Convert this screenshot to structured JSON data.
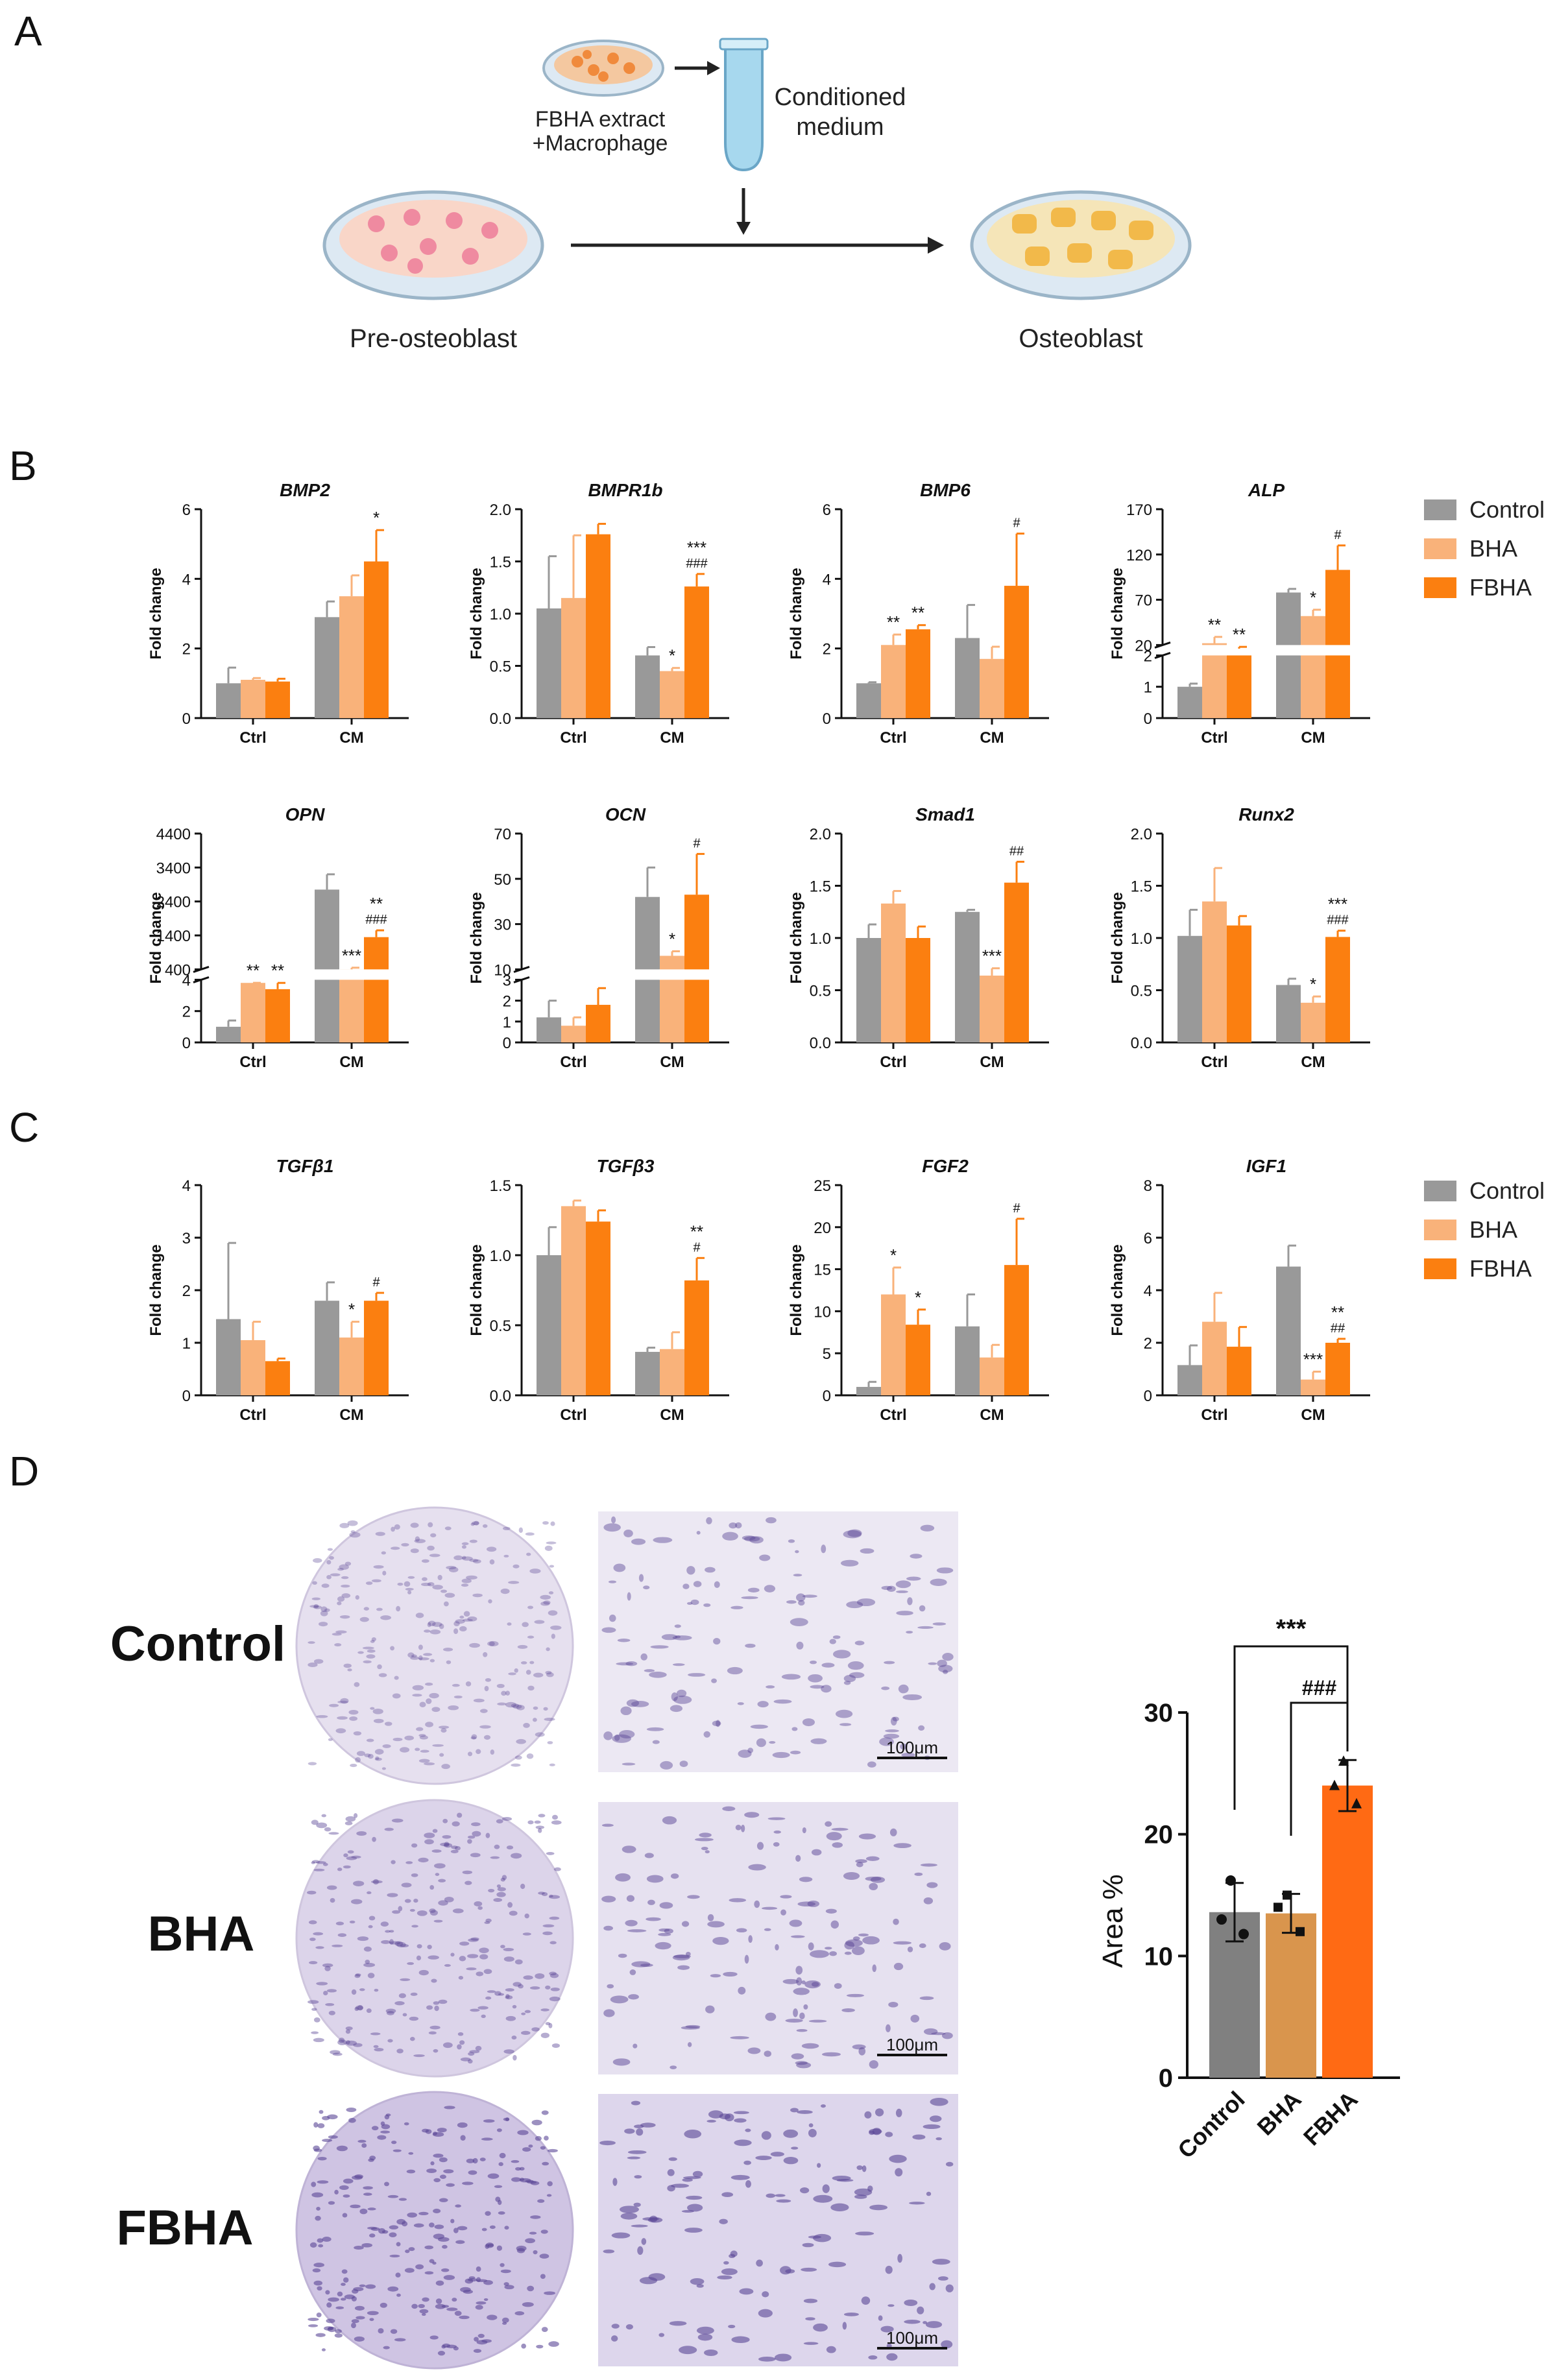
{
  "panel_labels": {
    "A": "A",
    "B": "B",
    "C": "C",
    "D": "D"
  },
  "schematic": {
    "dish_top_label_1": "FBHA extract",
    "dish_top_label_2": "+Macrophage",
    "tube_label_1": "Conditioned",
    "tube_label_2": "medium",
    "left_dish_label": "Pre-osteoblast",
    "right_dish_label": "Osteoblast"
  },
  "legend": {
    "items": [
      {
        "name": "Control",
        "color": "#999999"
      },
      {
        "name": "BHA",
        "color": "#f9b27a"
      },
      {
        "name": "FBHA",
        "color": "#fb7f10"
      }
    ]
  },
  "colors": {
    "control": "#999999",
    "bha": "#f9b27a",
    "fbha": "#fb7f10",
    "d_control": "#808080",
    "d_bha": "#d9954d",
    "d_fbha": "#ff6a14"
  },
  "staining": {
    "row_labels": [
      "Control",
      "BHA",
      "FBHA"
    ],
    "scale_bar_label": "100μm"
  },
  "chart_data": [
    {
      "panel": "B",
      "type": "bar",
      "title": "BMP2",
      "ylabel": "Fold change",
      "categories": [
        "Ctrl",
        "CM"
      ],
      "ylim": [
        0,
        6
      ],
      "yticks": [
        0,
        2,
        4,
        6
      ],
      "series": [
        {
          "name": "Control",
          "values": [
            1.0,
            2.9
          ],
          "errors": [
            0.45,
            0.45
          ]
        },
        {
          "name": "BHA",
          "values": [
            1.1,
            3.5
          ],
          "errors": [
            0.05,
            0.6
          ]
        },
        {
          "name": "FBHA",
          "values": [
            1.05,
            4.5
          ],
          "errors": [
            0.08,
            0.9
          ]
        }
      ],
      "annotations": [
        [
          "",
          "",
          ""
        ],
        [
          "",
          "",
          "*"
        ]
      ]
    },
    {
      "panel": "B",
      "type": "bar",
      "title": "BMPR1b",
      "ylabel": "Fold change",
      "categories": [
        "Ctrl",
        "CM"
      ],
      "ylim": [
        0,
        2.0
      ],
      "yticks": [
        0.0,
        0.5,
        1.0,
        1.5,
        2.0
      ],
      "series": [
        {
          "name": "Control",
          "values": [
            1.05,
            0.6
          ],
          "errors": [
            0.5,
            0.08
          ]
        },
        {
          "name": "BHA",
          "values": [
            1.15,
            0.45
          ],
          "errors": [
            0.6,
            0.03
          ]
        },
        {
          "name": "FBHA",
          "values": [
            1.76,
            1.26
          ],
          "errors": [
            0.1,
            0.12
          ]
        }
      ],
      "annotations": [
        [
          "",
          "",
          ""
        ],
        [
          "",
          "*",
          "***\n###"
        ]
      ]
    },
    {
      "panel": "B",
      "type": "bar",
      "title": "BMP6",
      "ylabel": "Fold change",
      "categories": [
        "Ctrl",
        "CM"
      ],
      "ylim": [
        0,
        6
      ],
      "yticks": [
        0,
        2,
        4,
        6
      ],
      "series": [
        {
          "name": "Control",
          "values": [
            1.0,
            2.3
          ],
          "errors": [
            0.03,
            0.95
          ]
        },
        {
          "name": "BHA",
          "values": [
            2.1,
            1.7
          ],
          "errors": [
            0.3,
            0.35
          ]
        },
        {
          "name": "FBHA",
          "values": [
            2.55,
            3.8
          ],
          "errors": [
            0.12,
            1.5
          ]
        }
      ],
      "annotations": [
        [
          "",
          "**",
          "**"
        ],
        [
          "",
          "",
          "#"
        ]
      ]
    },
    {
      "panel": "B",
      "type": "bar",
      "title": "ALP",
      "ylabel": "Fold change",
      "categories": [
        "Ctrl",
        "CM"
      ],
      "axis_break": true,
      "yticks_lower": [
        0,
        1,
        2
      ],
      "yticks_upper": [
        20,
        70,
        120,
        170
      ],
      "series": [
        {
          "name": "Control",
          "values": [
            1.0,
            78
          ],
          "errors": [
            0.1,
            4
          ]
        },
        {
          "name": "BHA",
          "values": [
            22,
            52
          ],
          "errors": [
            7,
            7
          ]
        },
        {
          "name": "FBHA",
          "values": [
            16,
            103
          ],
          "errors": [
            2,
            27
          ]
        }
      ],
      "annotations": [
        [
          "",
          "**",
          "**"
        ],
        [
          "",
          "*",
          "#"
        ]
      ]
    },
    {
      "panel": "B",
      "type": "bar",
      "title": "OPN",
      "ylabel": "Fold change",
      "categories": [
        "Ctrl",
        "CM"
      ],
      "axis_break": true,
      "yticks_lower": [
        0,
        2,
        4
      ],
      "yticks_upper": [
        400,
        1400,
        2400,
        3400,
        4400
      ],
      "series": [
        {
          "name": "Control",
          "values": [
            1.0,
            2750
          ],
          "errors": [
            0.4,
            450
          ]
        },
        {
          "name": "BHA",
          "values": [
            3.8,
            400
          ],
          "errors": [
            0.3,
            50
          ]
        },
        {
          "name": "FBHA",
          "values": [
            3.4,
            1350
          ],
          "errors": [
            0.4,
            200
          ]
        }
      ],
      "annotations": [
        [
          "",
          "**",
          "**"
        ],
        [
          "",
          "***",
          "**\n###"
        ]
      ]
    },
    {
      "panel": "B",
      "type": "bar",
      "title": "OCN",
      "ylabel": "Fold change",
      "categories": [
        "Ctrl",
        "CM"
      ],
      "axis_break": true,
      "yticks_lower": [
        0,
        1,
        2,
        3
      ],
      "yticks_upper": [
        10,
        30,
        50,
        70
      ],
      "series": [
        {
          "name": "Control",
          "values": [
            1.2,
            42
          ],
          "errors": [
            0.8,
            13
          ]
        },
        {
          "name": "BHA",
          "values": [
            0.8,
            16
          ],
          "errors": [
            0.4,
            2
          ]
        },
        {
          "name": "FBHA",
          "values": [
            1.8,
            43
          ],
          "errors": [
            0.8,
            18
          ]
        }
      ],
      "annotations": [
        [
          "",
          "",
          ""
        ],
        [
          "",
          "*",
          "#"
        ]
      ]
    },
    {
      "panel": "B",
      "type": "bar",
      "title": "Smad1",
      "ylabel": "Fold change",
      "categories": [
        "Ctrl",
        "CM"
      ],
      "ylim": [
        0,
        2.0
      ],
      "yticks": [
        0.0,
        0.5,
        1.0,
        1.5,
        2.0
      ],
      "series": [
        {
          "name": "Control",
          "values": [
            1.0,
            1.25
          ],
          "errors": [
            0.13,
            0.02
          ]
        },
        {
          "name": "BHA",
          "values": [
            1.33,
            0.64
          ],
          "errors": [
            0.12,
            0.07
          ]
        },
        {
          "name": "FBHA",
          "values": [
            1.0,
            1.53
          ],
          "errors": [
            0.11,
            0.2
          ]
        }
      ],
      "annotations": [
        [
          "",
          "",
          ""
        ],
        [
          "",
          "***",
          "##"
        ]
      ]
    },
    {
      "panel": "B",
      "type": "bar",
      "title": "Runx2",
      "ylabel": "Fold change",
      "categories": [
        "Ctrl",
        "CM"
      ],
      "ylim": [
        0,
        2.0
      ],
      "yticks": [
        0.0,
        0.5,
        1.0,
        1.5,
        2.0
      ],
      "series": [
        {
          "name": "Control",
          "values": [
            1.02,
            0.55
          ],
          "errors": [
            0.25,
            0.06
          ]
        },
        {
          "name": "BHA",
          "values": [
            1.35,
            0.38
          ],
          "errors": [
            0.32,
            0.06
          ]
        },
        {
          "name": "FBHA",
          "values": [
            1.12,
            1.01
          ],
          "errors": [
            0.09,
            0.06
          ]
        }
      ],
      "annotations": [
        [
          "",
          "",
          ""
        ],
        [
          "",
          "*",
          "***\n###"
        ]
      ]
    },
    {
      "panel": "C",
      "type": "bar",
      "title": "TGFβ1",
      "ylabel": "Fold change",
      "categories": [
        "Ctrl",
        "CM"
      ],
      "ylim": [
        0,
        4
      ],
      "yticks": [
        0,
        1,
        2,
        3,
        4
      ],
      "series": [
        {
          "name": "Control",
          "values": [
            1.45,
            1.8
          ],
          "errors": [
            1.45,
            0.35
          ]
        },
        {
          "name": "BHA",
          "values": [
            1.05,
            1.1
          ],
          "errors": [
            0.35,
            0.3
          ]
        },
        {
          "name": "FBHA",
          "values": [
            0.65,
            1.8
          ],
          "errors": [
            0.05,
            0.15
          ]
        }
      ],
      "annotations": [
        [
          "",
          "",
          ""
        ],
        [
          "",
          "*",
          "#"
        ]
      ]
    },
    {
      "panel": "C",
      "type": "bar",
      "title": "TGFβ3",
      "ylabel": "Fold change",
      "categories": [
        "Ctrl",
        "CM"
      ],
      "ylim": [
        0,
        1.5
      ],
      "yticks": [
        0.0,
        0.5,
        1.0,
        1.5
      ],
      "series": [
        {
          "name": "Control",
          "values": [
            1.0,
            0.31
          ],
          "errors": [
            0.2,
            0.03
          ]
        },
        {
          "name": "BHA",
          "values": [
            1.35,
            0.33
          ],
          "errors": [
            0.04,
            0.12
          ]
        },
        {
          "name": "FBHA",
          "values": [
            1.24,
            0.82
          ],
          "errors": [
            0.08,
            0.16
          ]
        }
      ],
      "annotations": [
        [
          "",
          "",
          ""
        ],
        [
          "",
          "",
          "**\n#"
        ]
      ]
    },
    {
      "panel": "C",
      "type": "bar",
      "title": "FGF2",
      "ylabel": "Fold change",
      "categories": [
        "Ctrl",
        "CM"
      ],
      "ylim": [
        0,
        25
      ],
      "yticks": [
        0,
        5,
        10,
        15,
        20,
        25
      ],
      "series": [
        {
          "name": "Control",
          "values": [
            1.0,
            8.2
          ],
          "errors": [
            0.6,
            3.8
          ]
        },
        {
          "name": "BHA",
          "values": [
            12.0,
            4.5
          ],
          "errors": [
            3.2,
            1.5
          ]
        },
        {
          "name": "FBHA",
          "values": [
            8.4,
            15.5
          ],
          "errors": [
            1.8,
            5.5
          ]
        }
      ],
      "annotations": [
        [
          "",
          "*",
          "*"
        ],
        [
          "",
          "",
          "#"
        ]
      ]
    },
    {
      "panel": "C",
      "type": "bar",
      "title": "IGF1",
      "ylabel": "Fold change",
      "categories": [
        "Ctrl",
        "CM"
      ],
      "ylim": [
        0,
        8
      ],
      "yticks": [
        0,
        2,
        4,
        6,
        8
      ],
      "series": [
        {
          "name": "Control",
          "values": [
            1.15,
            4.9
          ],
          "errors": [
            0.75,
            0.8
          ]
        },
        {
          "name": "BHA",
          "values": [
            2.8,
            0.6
          ],
          "errors": [
            1.1,
            0.3
          ]
        },
        {
          "name": "FBHA",
          "values": [
            1.85,
            2.0
          ],
          "errors": [
            0.75,
            0.15
          ]
        }
      ],
      "annotations": [
        [
          "",
          "",
          ""
        ],
        [
          "",
          "***",
          "**\n##"
        ]
      ]
    },
    {
      "panel": "D",
      "type": "bar",
      "title": "",
      "ylabel": "Area %",
      "categories": [
        "Control",
        "BHA",
        "FBHA"
      ],
      "ylim": [
        0,
        30
      ],
      "yticks": [
        0,
        10,
        20,
        30
      ],
      "values": [
        13.6,
        13.5,
        24.0
      ],
      "errors": [
        2.4,
        1.6,
        2.1
      ],
      "points": [
        [
          16.2,
          13.0,
          11.8
        ],
        [
          15.0,
          14.0,
          12.0
        ],
        [
          26.0,
          24.0,
          22.5
        ]
      ],
      "comparisons": [
        {
          "label": "***",
          "from": "Control",
          "to": "FBHA"
        },
        {
          "label": "###",
          "from": "BHA",
          "to": "FBHA"
        }
      ]
    }
  ]
}
